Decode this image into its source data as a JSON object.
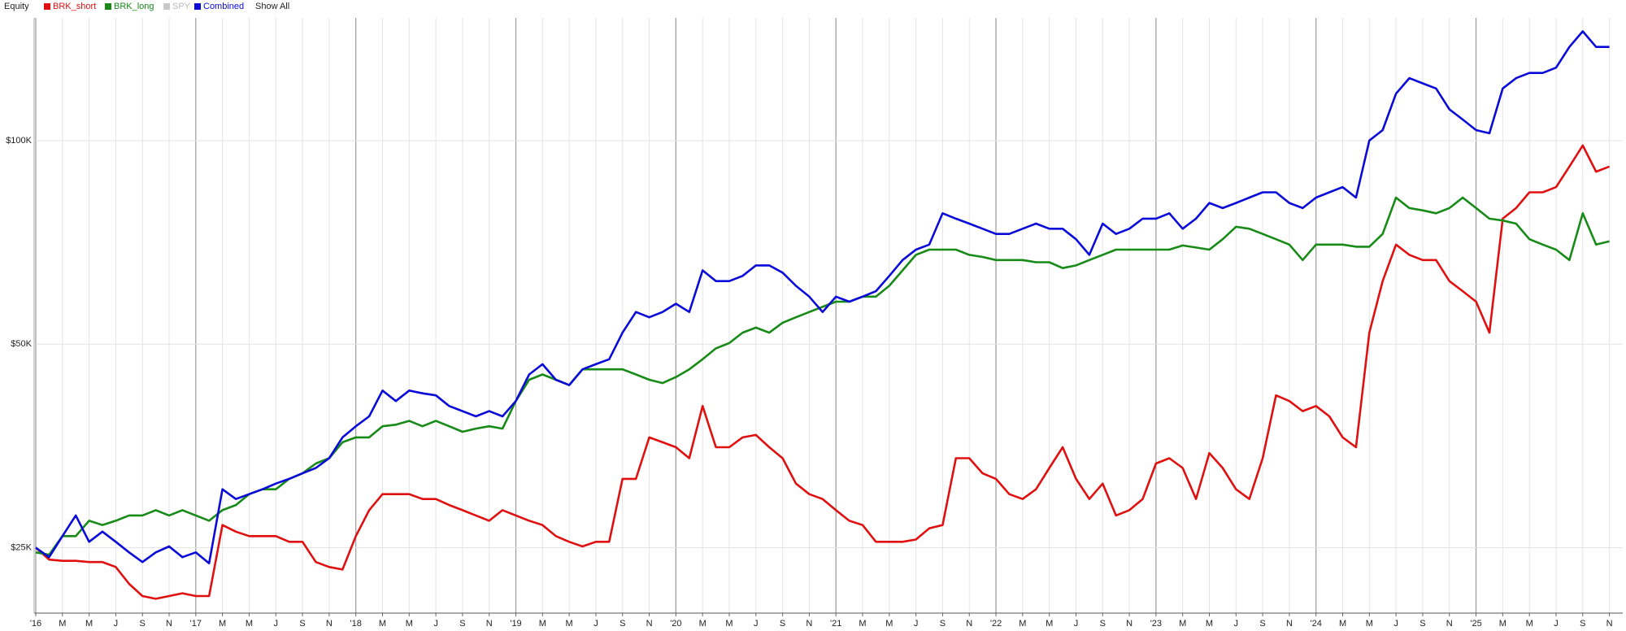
{
  "chart_data": {
    "type": "line",
    "legend_title": "Equity",
    "show_all": "Show All",
    "ylog": true,
    "grid": true,
    "ylim": [
      20000,
      152000
    ],
    "yticks": [
      {
        "value": 25000,
        "label": "$25K"
      },
      {
        "value": 50000,
        "label": "$50K"
      },
      {
        "value": 100000,
        "label": "$100K"
      }
    ],
    "xlim": [
      "2016-01",
      "2025-12"
    ],
    "xticks": [
      {
        "value": "2016-01",
        "label": "'16"
      },
      {
        "value": "2016-03",
        "label": "M"
      },
      {
        "value": "2016-05",
        "label": "M"
      },
      {
        "value": "2016-07",
        "label": "J"
      },
      {
        "value": "2016-09",
        "label": "S"
      },
      {
        "value": "2016-11",
        "label": "N"
      },
      {
        "value": "2017-01",
        "label": "'17"
      },
      {
        "value": "2017-03",
        "label": "M"
      },
      {
        "value": "2017-05",
        "label": "M"
      },
      {
        "value": "2017-07",
        "label": "J"
      },
      {
        "value": "2017-09",
        "label": "S"
      },
      {
        "value": "2017-11",
        "label": "N"
      },
      {
        "value": "2018-01",
        "label": "'18"
      },
      {
        "value": "2018-03",
        "label": "M"
      },
      {
        "value": "2018-05",
        "label": "M"
      },
      {
        "value": "2018-07",
        "label": "J"
      },
      {
        "value": "2018-09",
        "label": "S"
      },
      {
        "value": "2018-11",
        "label": "N"
      },
      {
        "value": "2019-01",
        "label": "'19"
      },
      {
        "value": "2019-03",
        "label": "M"
      },
      {
        "value": "2019-05",
        "label": "M"
      },
      {
        "value": "2019-07",
        "label": "J"
      },
      {
        "value": "2019-09",
        "label": "S"
      },
      {
        "value": "2019-11",
        "label": "N"
      },
      {
        "value": "2020-01",
        "label": "'20"
      },
      {
        "value": "2020-03",
        "label": "M"
      },
      {
        "value": "2020-05",
        "label": "M"
      },
      {
        "value": "2020-07",
        "label": "J"
      },
      {
        "value": "2020-09",
        "label": "S"
      },
      {
        "value": "2020-11",
        "label": "N"
      },
      {
        "value": "2021-01",
        "label": "'21"
      },
      {
        "value": "2021-03",
        "label": "M"
      },
      {
        "value": "2021-05",
        "label": "M"
      },
      {
        "value": "2021-07",
        "label": "J"
      },
      {
        "value": "2021-09",
        "label": "S"
      },
      {
        "value": "2021-11",
        "label": "N"
      },
      {
        "value": "2022-01",
        "label": "'22"
      },
      {
        "value": "2022-03",
        "label": "M"
      },
      {
        "value": "2022-05",
        "label": "M"
      },
      {
        "value": "2022-07",
        "label": "J"
      },
      {
        "value": "2022-09",
        "label": "S"
      },
      {
        "value": "2022-11",
        "label": "N"
      },
      {
        "value": "2023-01",
        "label": "'23"
      },
      {
        "value": "2023-03",
        "label": "M"
      },
      {
        "value": "2023-05",
        "label": "M"
      },
      {
        "value": "2023-07",
        "label": "J"
      },
      {
        "value": "2023-09",
        "label": "S"
      },
      {
        "value": "2023-11",
        "label": "N"
      },
      {
        "value": "2024-01",
        "label": "'24"
      },
      {
        "value": "2024-03",
        "label": "M"
      },
      {
        "value": "2024-05",
        "label": "M"
      },
      {
        "value": "2024-07",
        "label": "J"
      },
      {
        "value": "2024-09",
        "label": "S"
      },
      {
        "value": "2024-11",
        "label": "N"
      },
      {
        "value": "2025-01",
        "label": "'25"
      },
      {
        "value": "2025-03",
        "label": "M"
      },
      {
        "value": "2025-05",
        "label": "M"
      },
      {
        "value": "2025-07",
        "label": "J"
      },
      {
        "value": "2025-09",
        "label": "S"
      },
      {
        "value": "2025-11",
        "label": "N"
      }
    ],
    "x": [
      "2016-01",
      "2016-02",
      "2016-03",
      "2016-04",
      "2016-05",
      "2016-06",
      "2016-07",
      "2016-08",
      "2016-09",
      "2016-10",
      "2016-11",
      "2016-12",
      "2017-01",
      "2017-02",
      "2017-03",
      "2017-04",
      "2017-05",
      "2017-06",
      "2017-07",
      "2017-08",
      "2017-09",
      "2017-10",
      "2017-11",
      "2017-12",
      "2018-01",
      "2018-02",
      "2018-03",
      "2018-04",
      "2018-05",
      "2018-06",
      "2018-07",
      "2018-08",
      "2018-09",
      "2018-10",
      "2018-11",
      "2018-12",
      "2019-01",
      "2019-02",
      "2019-03",
      "2019-04",
      "2019-05",
      "2019-06",
      "2019-07",
      "2019-08",
      "2019-09",
      "2019-10",
      "2019-11",
      "2019-12",
      "2020-01",
      "2020-02",
      "2020-03",
      "2020-04",
      "2020-05",
      "2020-06",
      "2020-07",
      "2020-08",
      "2020-09",
      "2020-10",
      "2020-11",
      "2020-12",
      "2021-01",
      "2021-02",
      "2021-03",
      "2021-04",
      "2021-05",
      "2021-06",
      "2021-07",
      "2021-08",
      "2021-09",
      "2021-10",
      "2021-11",
      "2021-12",
      "2022-01",
      "2022-02",
      "2022-03",
      "2022-04",
      "2022-05",
      "2022-06",
      "2022-07",
      "2022-08",
      "2022-09",
      "2022-10",
      "2022-11",
      "2022-12",
      "2023-01",
      "2023-02",
      "2023-03",
      "2023-04",
      "2023-05",
      "2023-06",
      "2023-07",
      "2023-08",
      "2023-09",
      "2023-10",
      "2023-11",
      "2023-12",
      "2024-01",
      "2024-02",
      "2024-03",
      "2024-04",
      "2024-05",
      "2024-06",
      "2024-07",
      "2024-08",
      "2024-09",
      "2024-10",
      "2024-11",
      "2024-12",
      "2025-01",
      "2025-02",
      "2025-03",
      "2025-04",
      "2025-05",
      "2025-06",
      "2025-07",
      "2025-08",
      "2025-09",
      "2025-10",
      "2025-11"
    ],
    "series": [
      {
        "name": "BRK_short",
        "color": "#e01010",
        "values": [
          25000,
          24000,
          23900,
          23900,
          23800,
          23800,
          23400,
          22100,
          21200,
          21000,
          21200,
          21400,
          21200,
          21200,
          27000,
          26400,
          26000,
          26000,
          26000,
          25500,
          25500,
          23800,
          23400,
          23200,
          26000,
          28400,
          30000,
          30000,
          30000,
          29500,
          29500,
          28900,
          28400,
          27900,
          27400,
          28400,
          27900,
          27400,
          27000,
          26000,
          25500,
          25100,
          25500,
          25500,
          31600,
          31600,
          36400,
          35800,
          35200,
          33900,
          40500,
          35200,
          35200,
          36400,
          36700,
          35200,
          33900,
          31100,
          30000,
          29500,
          28400,
          27400,
          27000,
          25500,
          25500,
          25500,
          25700,
          26700,
          27000,
          33900,
          33900,
          32200,
          31600,
          30000,
          29500,
          30500,
          32800,
          35200,
          31600,
          29500,
          31100,
          27900,
          28400,
          29500,
          33300,
          33900,
          32800,
          29500,
          34500,
          32800,
          30500,
          29500,
          33900,
          42000,
          41200,
          39800,
          40500,
          39100,
          36400,
          35200,
          52000,
          62000,
          70200,
          67800,
          66600,
          66600,
          62000,
          59900,
          57800,
          52000,
          76700,
          79500,
          83900,
          83900,
          85400,
          91600,
          98400,
          90000,
          91600
        ]
      },
      {
        "name": "BRK_long",
        "color": "#178a17",
        "values": [
          24600,
          24400,
          26000,
          26000,
          27400,
          27000,
          27400,
          27900,
          27900,
          28400,
          27900,
          28400,
          27900,
          27400,
          28400,
          28900,
          30000,
          30500,
          30500,
          31600,
          32200,
          33300,
          33900,
          35800,
          36400,
          36400,
          37800,
          38000,
          38500,
          37800,
          38500,
          37800,
          37100,
          37500,
          37800,
          37500,
          41200,
          44300,
          45100,
          44300,
          43500,
          45900,
          45900,
          45900,
          45900,
          45100,
          44300,
          43800,
          44700,
          45900,
          47500,
          49300,
          50200,
          52000,
          52900,
          52000,
          53800,
          54800,
          55800,
          56800,
          57800,
          57800,
          58800,
          58800,
          61000,
          64300,
          67800,
          69000,
          69000,
          69000,
          67800,
          67300,
          66600,
          66600,
          66600,
          66100,
          66100,
          64800,
          65400,
          66600,
          67800,
          69000,
          69000,
          69000,
          69000,
          69000,
          70000,
          69500,
          69000,
          71500,
          74600,
          74100,
          72800,
          71500,
          70200,
          66600,
          70200,
          70200,
          70200,
          69700,
          69700,
          72800,
          82400,
          79500,
          78900,
          78100,
          79500,
          82400,
          79500,
          76700,
          76200,
          75400,
          71500,
          70200,
          69000,
          66600,
          78100,
          70200,
          71000
        ]
      },
      {
        "name": "Combined",
        "color": "#0a0ad8",
        "values": [
          25000,
          24200,
          26000,
          27900,
          25500,
          26400,
          25500,
          24600,
          23800,
          24600,
          25100,
          24200,
          24600,
          23700,
          30500,
          29500,
          30000,
          30500,
          31100,
          31600,
          32200,
          32800,
          33900,
          36400,
          37800,
          39100,
          42700,
          41200,
          42700,
          42300,
          42000,
          40500,
          39800,
          39100,
          39800,
          39100,
          41200,
          45100,
          46700,
          44300,
          43500,
          45900,
          46700,
          47500,
          52000,
          55800,
          54800,
          55800,
          57400,
          55800,
          64300,
          62000,
          62000,
          63100,
          65400,
          65400,
          63800,
          61000,
          58800,
          55800,
          58800,
          57800,
          58800,
          59900,
          63100,
          66600,
          69000,
          70200,
          78100,
          76700,
          75400,
          74100,
          72800,
          72800,
          74100,
          75400,
          74100,
          74100,
          71500,
          67800,
          75400,
          72800,
          74100,
          76700,
          76700,
          78100,
          74100,
          76700,
          80900,
          79500,
          80900,
          82400,
          83900,
          83900,
          80900,
          79500,
          82400,
          83900,
          85400,
          82400,
          100100,
          103700,
          117400,
          123800,
          121600,
          119500,
          111300,
          107500,
          103700,
          102600,
          119500,
          123800,
          126000,
          126000,
          128300,
          137700,
          145200,
          137700,
          137700
        ]
      }
    ],
    "hidden_series": [
      {
        "name": "SPY",
        "color": "#c8c8c8"
      }
    ]
  }
}
